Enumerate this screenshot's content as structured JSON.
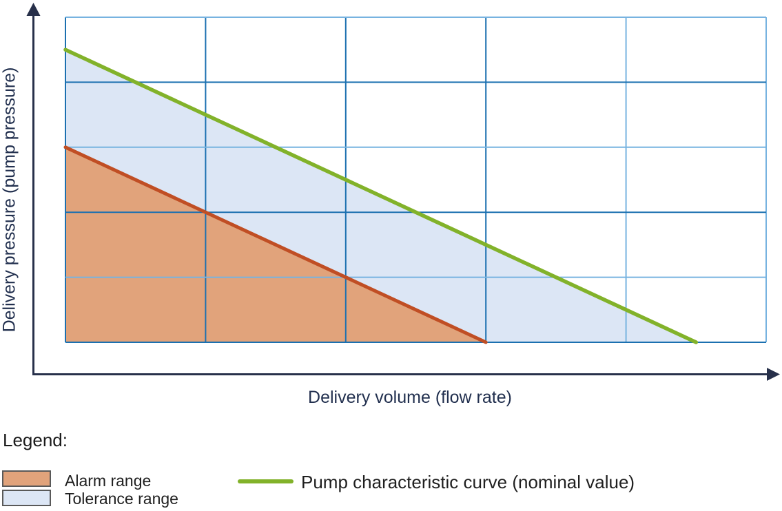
{
  "figure": {
    "xlabel": "Delivery volume (flow rate)",
    "ylabel": "Delivery pressure (pump pressure)"
  },
  "legend": {
    "heading": "Legend:",
    "items": [
      {
        "label": "Alarm range",
        "swatch": "#e1a37b",
        "swatch_border": "#595959",
        "kind": "area"
      },
      {
        "label": "Tolerance range",
        "swatch": "#dce6f5",
        "swatch_border": "#595959",
        "kind": "area"
      },
      {
        "label": "Pump characteristic curve (nominal value)",
        "swatch": "#82b22a",
        "kind": "line"
      }
    ]
  },
  "colors": {
    "grid_dark_blue": "#1b70b0",
    "grid_light_blue": "#77b3e0",
    "axis_navy": "#27304a",
    "axis_text_navy": "#22304f",
    "alarm_fill": "#e1a37b",
    "alarm_line": "#c04e24",
    "tolerance_fill": "#dce6f5",
    "nominal_line": "#82b22a",
    "legend_text": "#1f1f1f"
  },
  "chart_data": {
    "type": "area",
    "title": "",
    "xlabel": "Delivery volume (flow rate)",
    "ylabel": "Delivery pressure (pump pressure)",
    "x_range": [
      0,
      5
    ],
    "y_range": [
      0,
      5
    ],
    "x_ticks": [],
    "y_ticks": [],
    "grid": true,
    "grid_columns": 5,
    "grid_rows": 5,
    "legend_position": "below",
    "axes_style": "arrows-no-tick-labels",
    "series": [
      {
        "name": "Tolerance range",
        "type": "area",
        "fill": "#dce6f5",
        "points": [
          [
            0,
            4.5
          ],
          [
            4.5,
            0
          ],
          [
            3,
            0
          ],
          [
            0,
            3
          ]
        ]
      },
      {
        "name": "Alarm range",
        "type": "area",
        "fill": "#e1a37b",
        "points": [
          [
            0,
            3
          ],
          [
            3,
            0
          ],
          [
            0,
            0
          ]
        ]
      },
      {
        "name": "Alarm range boundary",
        "type": "line",
        "color": "#c04e24",
        "width": 5,
        "points": [
          [
            0,
            3
          ],
          [
            3,
            0
          ]
        ]
      },
      {
        "name": "Pump characteristic curve (nominal value)",
        "type": "line",
        "color": "#82b22a",
        "width": 5.5,
        "points": [
          [
            0,
            4.5
          ],
          [
            4.5,
            0
          ]
        ]
      }
    ],
    "gridline_colors": {
      "vertical_left_to_right": [
        "#1b70b0",
        "#1b70b0",
        "#1b70b0",
        "#1b70b0",
        "#77b3e0",
        "#77b3e0"
      ],
      "horizontal_top_to_bottom": [
        "#77b3e0",
        "#1b70b0",
        "#77b3e0",
        "#1b70b0",
        "#77b3e0",
        "#1b70b0"
      ]
    }
  }
}
